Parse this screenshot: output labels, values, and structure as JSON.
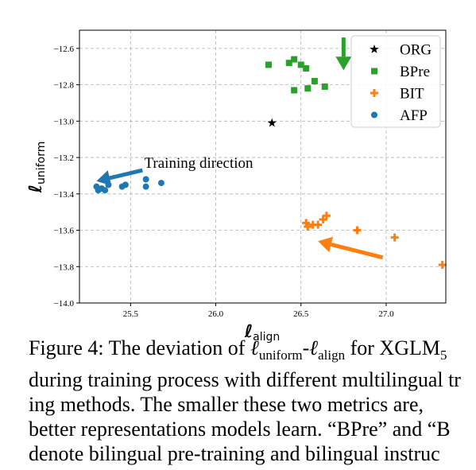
{
  "chart_data": {
    "type": "scatter",
    "xlabel": "ℓalign",
    "ylabel": "ℓuniform",
    "xlim": [
      25.2,
      27.35
    ],
    "ylim": [
      -14.0,
      -12.5
    ],
    "x_ticks": [
      "25.5",
      "26.0",
      "26.5",
      "27.0"
    ],
    "y_ticks": [
      "−12.6",
      "−12.8",
      "−13.0",
      "−13.2",
      "−13.4",
      "−13.6",
      "−13.8",
      "−14.0"
    ],
    "grid": true,
    "legend_position": "top-right",
    "series": [
      {
        "name": "ORG",
        "marker": "star",
        "color": "#000000",
        "points": [
          [
            26.33,
            -13.01
          ]
        ]
      },
      {
        "name": "BPre",
        "marker": "square",
        "color": "#2ca02c",
        "points": [
          [
            26.31,
            -12.69
          ],
          [
            26.43,
            -12.68
          ],
          [
            26.46,
            -12.66
          ],
          [
            26.5,
            -12.69
          ],
          [
            26.53,
            -12.71
          ],
          [
            26.58,
            -12.78
          ],
          [
            26.64,
            -12.81
          ],
          [
            26.54,
            -12.82
          ],
          [
            26.46,
            -12.83
          ]
        ]
      },
      {
        "name": "BIT",
        "marker": "plus",
        "color": "#ff7f0e",
        "points": [
          [
            26.53,
            -13.56
          ],
          [
            26.54,
            -13.58
          ],
          [
            26.57,
            -13.57
          ],
          [
            26.6,
            -13.57
          ],
          [
            26.63,
            -13.54
          ],
          [
            26.65,
            -13.52
          ],
          [
            26.83,
            -13.6
          ],
          [
            27.05,
            -13.64
          ],
          [
            27.33,
            -13.79
          ]
        ]
      },
      {
        "name": "AFP",
        "marker": "circle",
        "color": "#1f77b4",
        "points": [
          [
            25.3,
            -13.36
          ],
          [
            25.31,
            -13.38
          ],
          [
            25.33,
            -13.37
          ],
          [
            25.35,
            -13.38
          ],
          [
            25.37,
            -13.35
          ],
          [
            25.45,
            -13.36
          ],
          [
            25.47,
            -13.35
          ],
          [
            25.59,
            -13.32
          ],
          [
            25.59,
            -13.36
          ],
          [
            25.68,
            -13.34
          ]
        ]
      }
    ],
    "annotations": [
      {
        "text": "Training direction",
        "x": 25.58,
        "y": -13.23
      }
    ],
    "arrows": [
      {
        "color": "#1f77b4",
        "from": [
          25.57,
          -13.27
        ],
        "to": [
          25.3,
          -13.33
        ]
      },
      {
        "color": "#2ca02c",
        "from": [
          26.75,
          -12.54
        ],
        "to": [
          26.75,
          -12.72
        ]
      },
      {
        "color": "#ff7f0e",
        "from": [
          26.98,
          -13.75
        ],
        "to": [
          26.6,
          -13.66
        ]
      }
    ]
  },
  "caption": {
    "lines": [
      [
        "Figure 4: The deviation of ",
        "ℓ",
        "uniform",
        "-",
        "ℓ",
        "align",
        " for XGLM",
        "5"
      ],
      [
        "during training process with different multilingual tr"
      ],
      [
        "ing methods.  The smaller these two metrics are,"
      ],
      [
        "better representations models learn. “BPre” and “B"
      ],
      [
        "denote bilingual pre-training and bilingual instruc"
      ]
    ]
  },
  "colors": {
    "bpre": "#2ca02c",
    "bit": "#ff7f0e",
    "afp": "#1f77b4",
    "org": "#000000",
    "grid": "#b0b0b0"
  }
}
